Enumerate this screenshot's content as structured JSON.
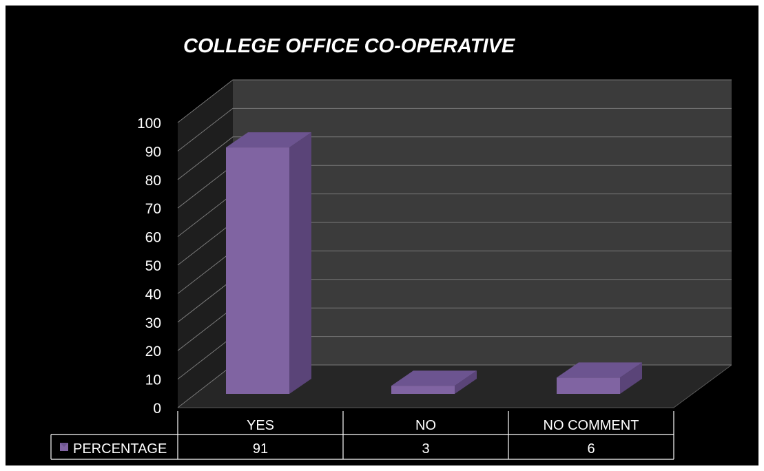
{
  "chart_data": {
    "type": "bar",
    "title": "COLLEGE OFFICE CO-OPERATIVE",
    "categories": [
      "YES",
      "NO",
      "NO COMMENT"
    ],
    "series": [
      {
        "name": "PERCENTAGE",
        "values": [
          91,
          3,
          6
        ],
        "color": "#8064a2"
      }
    ],
    "ylim": [
      0,
      100
    ],
    "yticks": [
      "0",
      "10",
      "20",
      "30",
      "40",
      "50",
      "60",
      "70",
      "80",
      "90",
      "100"
    ],
    "grid": true,
    "legend": "data-table-left",
    "data_table": true,
    "style": "3d-column",
    "colors": {
      "background": "#000000",
      "wall": "#3b3b3b",
      "floor": "#262626",
      "text": "#ffffff",
      "gridline": "#7a7a7a"
    }
  }
}
